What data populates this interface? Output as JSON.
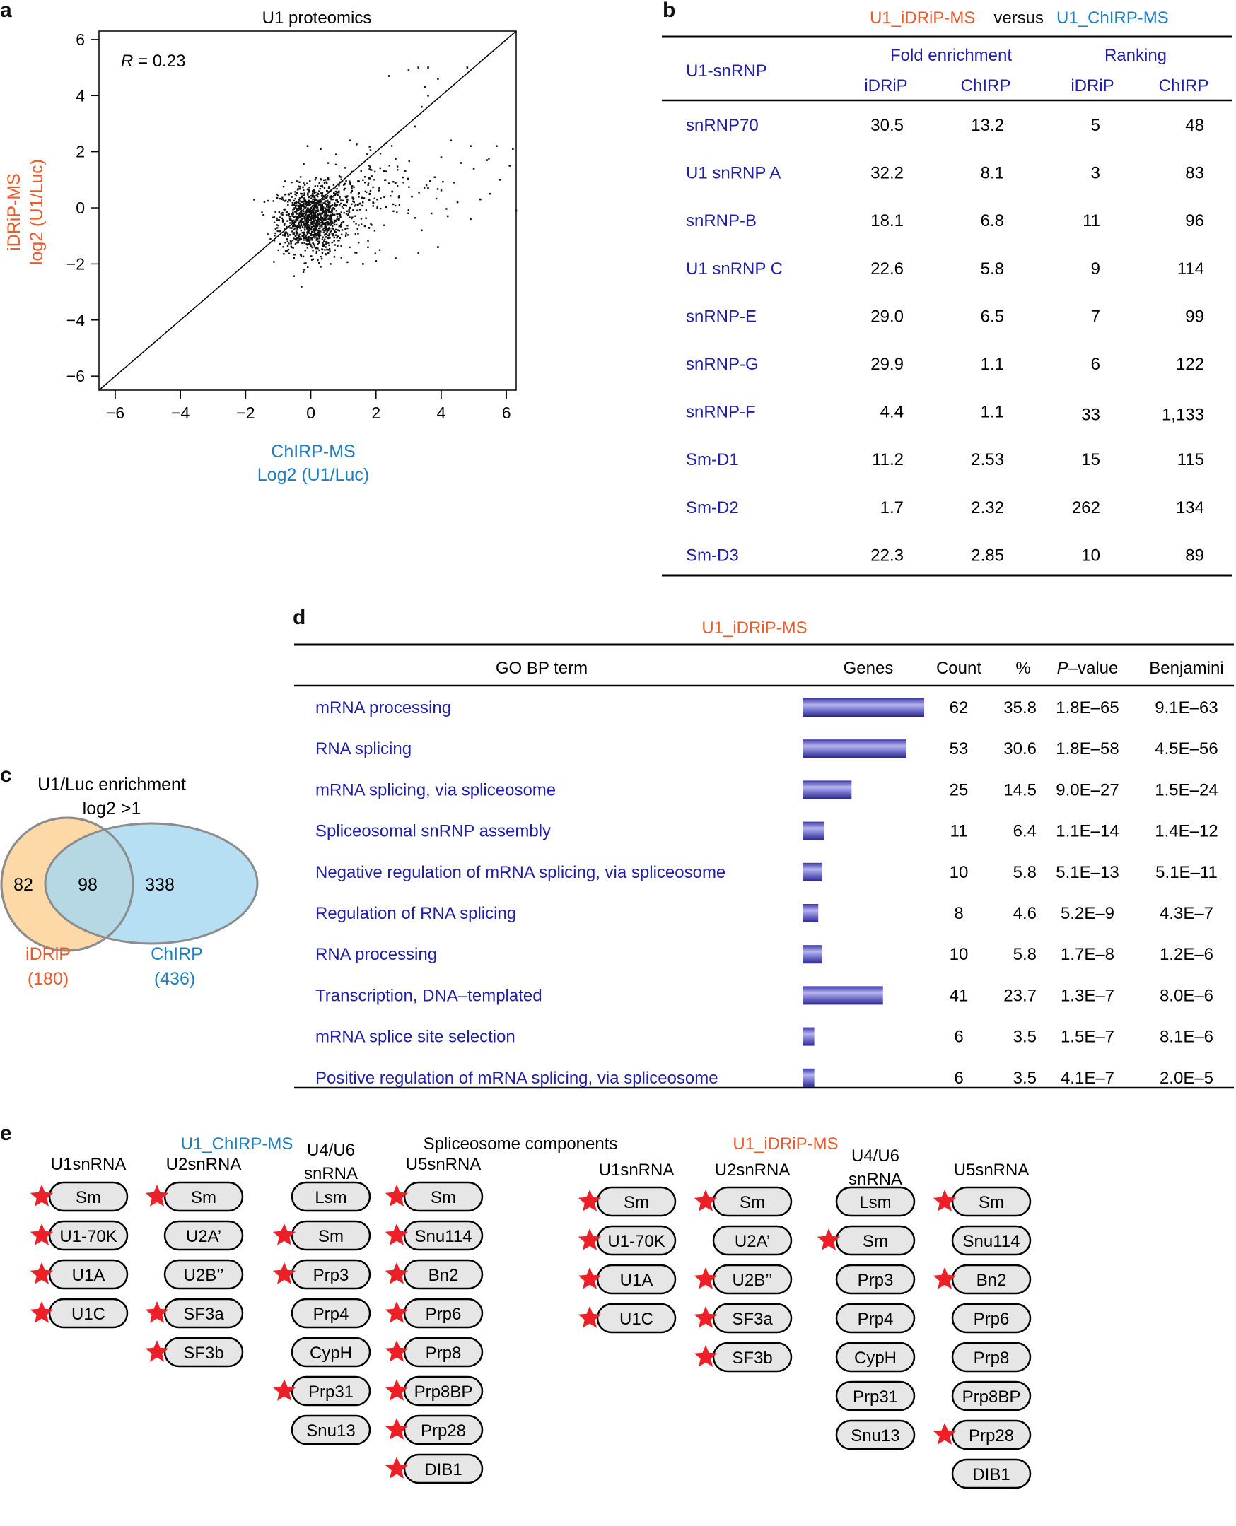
{
  "panels": {
    "a": "a",
    "b": "b",
    "c": "c",
    "d": "d",
    "e": "e"
  },
  "colors": {
    "orange": "#ec5a2a",
    "blue": "#1b7fc2",
    "navy": "#1f1fa8",
    "venn_left": "#fcd9a6",
    "venn_right": "#a6d8f2",
    "star": "#ee2027"
  },
  "chart_data": [
    {
      "type": "scatter",
      "title": "U1 proteomics",
      "annotation": "R = 0.23",
      "r_label": "R",
      "r_value": "= 0.23",
      "xlabel": "ChIRP-MS",
      "xlabel2": "Log2 (U1/Luc)",
      "ylabel": "iDRiP-MS",
      "ylabel2": "log2 (U1/Luc)",
      "xlim": [
        -6.5,
        6.3
      ],
      "ylim": [
        -6.5,
        6.3
      ],
      "xticks": [
        -6,
        -4,
        -2,
        0,
        2,
        4,
        6
      ],
      "yticks": [
        -6,
        -4,
        -2,
        0,
        2,
        4,
        6
      ],
      "xtick_labels": [
        "−6",
        "−4",
        "−2",
        "0",
        "2",
        "4",
        "6"
      ],
      "ytick_labels": [
        "−6",
        "−4",
        "−2",
        "0",
        "2",
        "4",
        "6"
      ],
      "reference_line": "y = x",
      "points": [
        [
          2.4,
          4.7
        ],
        [
          3.0,
          4.9
        ],
        [
          3.3,
          5.0
        ],
        [
          3.6,
          5.0
        ],
        [
          3.9,
          4.6
        ],
        [
          3.5,
          4.3
        ],
        [
          3.6,
          4.0
        ],
        [
          3.4,
          3.6
        ],
        [
          4.8,
          5.0
        ],
        [
          3.2,
          2.9
        ],
        [
          4.3,
          2.4
        ],
        [
          4.9,
          2.2
        ],
        [
          5.7,
          2.2
        ],
        [
          6.2,
          2.1
        ],
        [
          6.1,
          1.5
        ],
        [
          5.8,
          1.0
        ],
        [
          6.3,
          -0.1
        ],
        [
          5.5,
          0.5
        ],
        [
          4.6,
          1.6
        ],
        [
          3.3,
          -1.6
        ],
        [
          3.9,
          -1.4
        ],
        [
          2.6,
          -1.8
        ],
        [
          2.0,
          -1.9
        ],
        [
          1.4,
          -1.6
        ],
        [
          3.4,
          -0.8
        ],
        [
          4.9,
          -0.4
        ],
        [
          5.2,
          0.3
        ],
        [
          3.6,
          0.7
        ],
        [
          2.9,
          1.3
        ],
        [
          2.3,
          2.3
        ],
        [
          4.0,
          1.8
        ],
        [
          4.4,
          0.9
        ],
        [
          5.0,
          1.4
        ],
        [
          3.7,
          -0.2
        ],
        [
          4.2,
          -0.3
        ],
        [
          4.5,
          0.2
        ],
        [
          5.4,
          1.7
        ],
        [
          2.6,
          0.9
        ],
        [
          3.1,
          0.4
        ],
        [
          1.6,
          -2.0
        ],
        [
          0.3,
          -2.1
        ],
        [
          -0.2,
          -2.2
        ],
        [
          0.6,
          -2.0
        ],
        [
          -0.1,
          2.2
        ],
        [
          0.3,
          2.1
        ],
        [
          1.2,
          2.4
        ]
      ],
      "cluster": {
        "note": "dense cloud of ~1300 proteins centred near (0, -0.4)",
        "center": [
          0.0,
          -0.4
        ],
        "spread": [
          0.5,
          0.6
        ],
        "n": 1300
      }
    },
    {
      "type": "venn",
      "title": "U1/Luc enrichment",
      "subtitle": "log2 >1",
      "left_only": "82",
      "overlap": "98",
      "right_only": "338",
      "left_name": "iDRiP",
      "left_total": "(180)",
      "right_name": "ChIRP",
      "right_total": "(436)"
    },
    {
      "type": "bar",
      "title": "U1_iDRiP-MS",
      "categories": [
        "mRNA processing",
        "RNA splicing",
        "mRNA splicing, via spliceosome",
        "Spliceosomal snRNP assembly",
        "Negative regulation of mRNA splicing, via spliceosome",
        "Regulation of RNA splicing",
        "RNA processing",
        "Transcription, DNA–templated",
        "mRNA splice site selection",
        "Positive regulation of mRNA splicing, via spliceosome"
      ],
      "values": [
        62,
        53,
        25,
        11,
        10,
        8,
        10,
        41,
        6,
        6
      ],
      "xlabel": "Genes"
    }
  ],
  "panel_b": {
    "title_left": "U1_iDRiP-MS",
    "title_mid": "versus",
    "title_right": "U1_ChIRP-MS",
    "col_protein": "U1-snRNP",
    "group_fold": "Fold enrichment",
    "group_rank": "Ranking",
    "sub_idrip": "iDRiP",
    "sub_chirp": "ChIRP",
    "rows": [
      {
        "name": "snRNP70",
        "fi": "30.5",
        "fc": "13.2",
        "ri": "5",
        "rc": "48"
      },
      {
        "name": "U1 snRNP A",
        "fi": "32.2",
        "fc": "8.1",
        "ri": "3",
        "rc": "83"
      },
      {
        "name": "snRNP-B",
        "fi": "18.1",
        "fc": "6.8",
        "ri": "11",
        "rc": "96"
      },
      {
        "name": "U1 snRNP C",
        "fi": "22.6",
        "fc": "5.8",
        "ri": "9",
        "rc": "114"
      },
      {
        "name": "snRNP-E",
        "fi": "29.0",
        "fc": "6.5",
        "ri": "7",
        "rc": "99"
      },
      {
        "name": "snRNP-G",
        "fi": "29.9",
        "fc": "1.1",
        "ri": "6",
        "rc": "122"
      },
      {
        "name": "snRNP-F",
        "fi": "4.4",
        "fc": "1.1",
        "ri": "33",
        "rc": "1,133"
      },
      {
        "name": "Sm-D1",
        "fi": "11.2",
        "fc": "2.53",
        "ri": "15",
        "rc": "115"
      },
      {
        "name": "Sm-D2",
        "fi": "1.7",
        "fc": "2.32",
        "ri": "262",
        "rc": "134"
      },
      {
        "name": "Sm-D3",
        "fi": "22.3",
        "fc": "2.85",
        "ri": "10",
        "rc": "89"
      }
    ]
  },
  "panel_d": {
    "title": "U1_iDRiP-MS",
    "headers": {
      "term": "GO BP term",
      "genes": "Genes",
      "count": "Count",
      "pct": "%",
      "p_pre": "P",
      "p_post": "–value",
      "benj": "Benjamini"
    },
    "rows": [
      {
        "term": "mRNA processing",
        "count": "62",
        "pct": "35.8",
        "p": "1.8E–65",
        "b": "9.1E–63"
      },
      {
        "term": "RNA splicing",
        "count": "53",
        "pct": "30.6",
        "p": "1.8E–58",
        "b": "4.5E–56"
      },
      {
        "term": "mRNA splicing, via spliceosome",
        "count": "25",
        "pct": "14.5",
        "p": "9.0E–27",
        "b": "1.5E–24"
      },
      {
        "term": "Spliceosomal snRNP assembly",
        "count": "11",
        "pct": "6.4",
        "p": "1.1E–14",
        "b": "1.4E–12"
      },
      {
        "term": "Negative regulation of mRNA splicing, via spliceosome",
        "count": "10",
        "pct": "5.8",
        "p": "5.1E–13",
        "b": "5.1E–11"
      },
      {
        "term": "Regulation of RNA splicing",
        "count": "8",
        "pct": "4.6",
        "p": "5.2E–9",
        "b": "4.3E–7"
      },
      {
        "term": "RNA processing",
        "count": "10",
        "pct": "5.8",
        "p": "1.7E–8",
        "b": "1.2E–6"
      },
      {
        "term": "Transcription, DNA–templated",
        "count": "41",
        "pct": "23.7",
        "p": "1.3E–7",
        "b": "8.0E–6"
      },
      {
        "term": "mRNA splice site selection",
        "count": "6",
        "pct": "3.5",
        "p": "1.5E–7",
        "b": "8.1E–6"
      },
      {
        "term": "Positive regulation of mRNA splicing, via spliceosome",
        "count": "6",
        "pct": "3.5",
        "p": "4.1E–7",
        "b": "2.0E–5"
      }
    ]
  },
  "panel_e": {
    "title": "Spliceosome components",
    "groups": [
      {
        "title": "U1_ChIRP-MS",
        "columns": [
          {
            "header": [
              "U1snRNA"
            ],
            "items": [
              [
                "Sm",
                true
              ],
              [
                "U1-70K",
                true
              ],
              [
                "U1A",
                true
              ],
              [
                "U1C",
                true
              ]
            ]
          },
          {
            "header": [
              "U2snRNA"
            ],
            "items": [
              [
                "Sm",
                true
              ],
              [
                "U2A’",
                false
              ],
              [
                "U2B’’",
                false
              ],
              [
                "SF3a",
                true
              ],
              [
                "SF3b",
                true
              ]
            ]
          },
          {
            "header": [
              "U4/U6",
              "snRNA"
            ],
            "items": [
              [
                "Lsm",
                false
              ],
              [
                "Sm",
                true
              ],
              [
                "Prp3",
                true
              ],
              [
                "Prp4",
                false
              ],
              [
                "CypH",
                false
              ],
              [
                "Prp31",
                true
              ],
              [
                "Snu13",
                false
              ]
            ]
          },
          {
            "header": [
              "U5snRNA"
            ],
            "items": [
              [
                "Sm",
                true
              ],
              [
                "Snu114",
                true
              ],
              [
                "Bn2",
                true
              ],
              [
                "Prp6",
                true
              ],
              [
                "Prp8",
                true
              ],
              [
                "Prp8BP",
                true
              ],
              [
                "Prp28",
                true
              ],
              [
                "DIB1",
                true
              ]
            ]
          }
        ]
      },
      {
        "title": "U1_iDRiP-MS",
        "columns": [
          {
            "header": [
              "U1snRNA"
            ],
            "items": [
              [
                "Sm",
                true
              ],
              [
                "U1-70K",
                true
              ],
              [
                "U1A",
                true
              ],
              [
                "U1C",
                true
              ]
            ]
          },
          {
            "header": [
              "U2snRNA"
            ],
            "items": [
              [
                "Sm",
                true
              ],
              [
                "U2A’",
                false
              ],
              [
                "U2B’’",
                true
              ],
              [
                "SF3a",
                true
              ],
              [
                "SF3b",
                true
              ]
            ]
          },
          {
            "header": [
              "U4/U6",
              "snRNA"
            ],
            "items": [
              [
                "Lsm",
                false
              ],
              [
                "Sm",
                true
              ],
              [
                "Prp3",
                false
              ],
              [
                "Prp4",
                false
              ],
              [
                "CypH",
                false
              ],
              [
                "Prp31",
                false
              ],
              [
                "Snu13",
                false
              ]
            ]
          },
          {
            "header": [
              "U5snRNA"
            ],
            "items": [
              [
                "Sm",
                true
              ],
              [
                "Snu114",
                false
              ],
              [
                "Bn2",
                true
              ],
              [
                "Prp6",
                false
              ],
              [
                "Prp8",
                false
              ],
              [
                "Prp8BP",
                false
              ],
              [
                "Prp28",
                true
              ],
              [
                "DIB1",
                false
              ]
            ]
          }
        ]
      }
    ]
  }
}
